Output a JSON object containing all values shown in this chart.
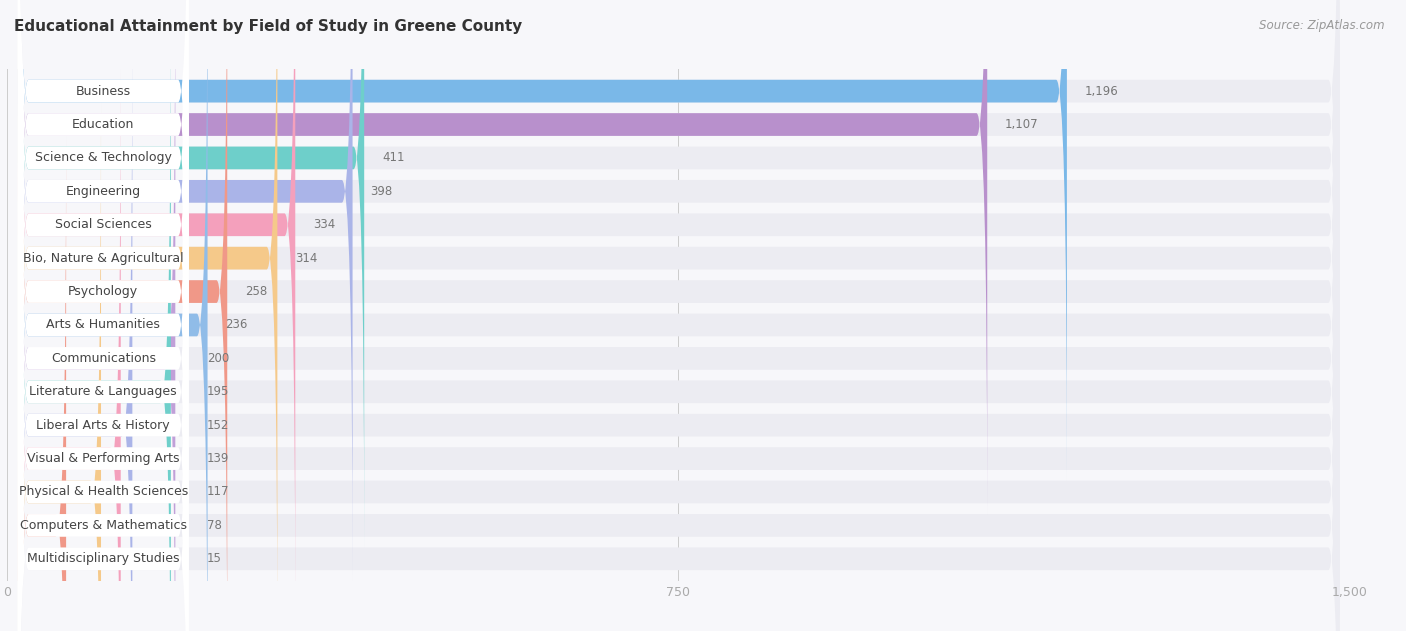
{
  "title": "Educational Attainment by Field of Study in Greene County",
  "source": "Source: ZipAtlas.com",
  "categories": [
    "Business",
    "Education",
    "Science & Technology",
    "Engineering",
    "Social Sciences",
    "Bio, Nature & Agricultural",
    "Psychology",
    "Arts & Humanities",
    "Communications",
    "Literature & Languages",
    "Liberal Arts & History",
    "Visual & Performing Arts",
    "Physical & Health Sciences",
    "Computers & Mathematics",
    "Multidisciplinary Studies"
  ],
  "values": [
    1196,
    1107,
    411,
    398,
    334,
    314,
    258,
    236,
    200,
    195,
    152,
    139,
    117,
    78,
    15
  ],
  "bar_colors": [
    "#7ab8e8",
    "#b890cc",
    "#6ecfca",
    "#aab4e8",
    "#f4a0bc",
    "#f5c98a",
    "#f09888",
    "#90bce8",
    "#c0a0d8",
    "#6ecfca",
    "#aab4e8",
    "#f4a0bc",
    "#f5c98a",
    "#f09888",
    "#90bce8"
  ],
  "bg_color": "#f7f7fa",
  "bar_bg_color": "#ececf2",
  "xlim": [
    0,
    1500
  ],
  "xticks": [
    0,
    750,
    1500
  ],
  "title_fontsize": 11,
  "label_fontsize": 9,
  "value_fontsize": 8.5,
  "source_fontsize": 8.5
}
